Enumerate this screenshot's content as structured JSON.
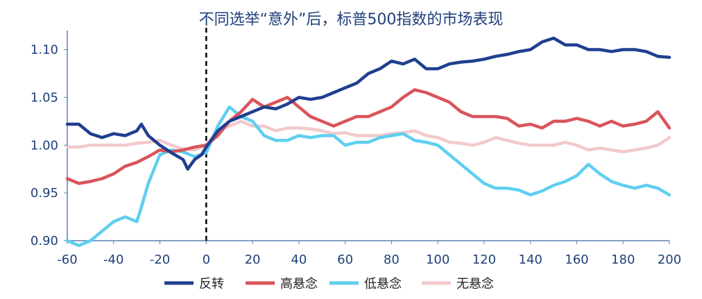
{
  "chart_data": {
    "type": "line",
    "title": "不同选举“意外”后，标普500指数的市场表现",
    "xlabel": "",
    "ylabel": "",
    "xlim": [
      -60,
      200
    ],
    "ylim": [
      0.9,
      1.12
    ],
    "x_ticks": [
      -60,
      -40,
      -20,
      0,
      20,
      40,
      60,
      80,
      100,
      120,
      140,
      160,
      180,
      200
    ],
    "x_tick_labels": [
      "-60",
      "-40",
      "-20",
      "0",
      "20",
      "40",
      "60",
      "80",
      "100",
      "120",
      "140",
      "160",
      "180",
      "200"
    ],
    "y_ticks": [
      0.9,
      0.95,
      1.0,
      1.05,
      1.1
    ],
    "y_tick_labels": [
      "0.90",
      "0.95",
      "1.00",
      "1.05",
      "1.10"
    ],
    "vline_x": 0,
    "grid": false,
    "legend_position": "bottom",
    "series": [
      {
        "name": "反转",
        "color": "#1f3f8f",
        "points": [
          [
            -60,
            1.022
          ],
          [
            -55,
            1.022
          ],
          [
            -50,
            1.012
          ],
          [
            -45,
            1.008
          ],
          [
            -40,
            1.012
          ],
          [
            -35,
            1.01
          ],
          [
            -30,
            1.015
          ],
          [
            -28,
            1.022
          ],
          [
            -25,
            1.01
          ],
          [
            -20,
            1.0
          ],
          [
            -15,
            0.992
          ],
          [
            -10,
            0.985
          ],
          [
            -8,
            0.975
          ],
          [
            -5,
            0.985
          ],
          [
            -2,
            0.99
          ],
          [
            0,
            0.998
          ],
          [
            5,
            1.015
          ],
          [
            10,
            1.025
          ],
          [
            15,
            1.03
          ],
          [
            20,
            1.035
          ],
          [
            25,
            1.04
          ],
          [
            30,
            1.038
          ],
          [
            35,
            1.043
          ],
          [
            40,
            1.05
          ],
          [
            45,
            1.048
          ],
          [
            50,
            1.05
          ],
          [
            55,
            1.055
          ],
          [
            60,
            1.06
          ],
          [
            65,
            1.065
          ],
          [
            70,
            1.075
          ],
          [
            75,
            1.08
          ],
          [
            80,
            1.088
          ],
          [
            85,
            1.085
          ],
          [
            90,
            1.09
          ],
          [
            95,
            1.08
          ],
          [
            100,
            1.08
          ],
          [
            105,
            1.085
          ],
          [
            110,
            1.087
          ],
          [
            115,
            1.088
          ],
          [
            120,
            1.09
          ],
          [
            125,
            1.093
          ],
          [
            130,
            1.095
          ],
          [
            135,
            1.098
          ],
          [
            140,
            1.1
          ],
          [
            145,
            1.108
          ],
          [
            150,
            1.112
          ],
          [
            155,
            1.105
          ],
          [
            160,
            1.105
          ],
          [
            165,
            1.1
          ],
          [
            170,
            1.1
          ],
          [
            175,
            1.098
          ],
          [
            180,
            1.1
          ],
          [
            185,
            1.1
          ],
          [
            190,
            1.098
          ],
          [
            195,
            1.093
          ],
          [
            200,
            1.092
          ]
        ]
      },
      {
        "name": "高悬念",
        "color": "#d9545a",
        "points": [
          [
            -60,
            0.965
          ],
          [
            -55,
            0.96
          ],
          [
            -50,
            0.962
          ],
          [
            -45,
            0.965
          ],
          [
            -40,
            0.97
          ],
          [
            -35,
            0.978
          ],
          [
            -30,
            0.982
          ],
          [
            -25,
            0.988
          ],
          [
            -20,
            0.995
          ],
          [
            -15,
            0.993
          ],
          [
            -10,
            0.995
          ],
          [
            -5,
            0.998
          ],
          [
            0,
            1.0
          ],
          [
            5,
            1.01
          ],
          [
            10,
            1.025
          ],
          [
            15,
            1.035
          ],
          [
            20,
            1.048
          ],
          [
            25,
            1.04
          ],
          [
            30,
            1.045
          ],
          [
            35,
            1.05
          ],
          [
            40,
            1.04
          ],
          [
            45,
            1.03
          ],
          [
            50,
            1.025
          ],
          [
            55,
            1.02
          ],
          [
            60,
            1.025
          ],
          [
            65,
            1.03
          ],
          [
            70,
            1.03
          ],
          [
            75,
            1.035
          ],
          [
            80,
            1.04
          ],
          [
            85,
            1.05
          ],
          [
            90,
            1.058
          ],
          [
            95,
            1.055
          ],
          [
            100,
            1.05
          ],
          [
            105,
            1.045
          ],
          [
            110,
            1.035
          ],
          [
            115,
            1.03
          ],
          [
            120,
            1.03
          ],
          [
            125,
            1.03
          ],
          [
            130,
            1.028
          ],
          [
            135,
            1.02
          ],
          [
            140,
            1.022
          ],
          [
            145,
            1.018
          ],
          [
            150,
            1.025
          ],
          [
            155,
            1.025
          ],
          [
            160,
            1.028
          ],
          [
            165,
            1.025
          ],
          [
            170,
            1.02
          ],
          [
            175,
            1.025
          ],
          [
            180,
            1.02
          ],
          [
            185,
            1.022
          ],
          [
            190,
            1.025
          ],
          [
            195,
            1.035
          ],
          [
            200,
            1.018
          ]
        ]
      },
      {
        "name": "低悬念",
        "color": "#5fcff0",
        "points": [
          [
            -60,
            0.9
          ],
          [
            -55,
            0.895
          ],
          [
            -50,
            0.9
          ],
          [
            -45,
            0.91
          ],
          [
            -40,
            0.92
          ],
          [
            -35,
            0.925
          ],
          [
            -30,
            0.92
          ],
          [
            -28,
            0.935
          ],
          [
            -25,
            0.96
          ],
          [
            -20,
            0.99
          ],
          [
            -15,
            0.995
          ],
          [
            -10,
            0.993
          ],
          [
            -5,
            0.988
          ],
          [
            0,
            0.992
          ],
          [
            5,
            1.02
          ],
          [
            10,
            1.04
          ],
          [
            15,
            1.03
          ],
          [
            20,
            1.025
          ],
          [
            25,
            1.01
          ],
          [
            30,
            1.005
          ],
          [
            35,
            1.005
          ],
          [
            40,
            1.01
          ],
          [
            45,
            1.008
          ],
          [
            50,
            1.01
          ],
          [
            55,
            1.01
          ],
          [
            60,
            1.0
          ],
          [
            65,
            1.003
          ],
          [
            70,
            1.003
          ],
          [
            75,
            1.008
          ],
          [
            80,
            1.01
          ],
          [
            85,
            1.012
          ],
          [
            90,
            1.005
          ],
          [
            95,
            1.003
          ],
          [
            100,
            1.0
          ],
          [
            105,
            0.99
          ],
          [
            110,
            0.98
          ],
          [
            115,
            0.97
          ],
          [
            120,
            0.96
          ],
          [
            125,
            0.955
          ],
          [
            130,
            0.955
          ],
          [
            135,
            0.953
          ],
          [
            140,
            0.948
          ],
          [
            145,
            0.952
          ],
          [
            150,
            0.958
          ],
          [
            155,
            0.962
          ],
          [
            160,
            0.968
          ],
          [
            165,
            0.98
          ],
          [
            170,
            0.97
          ],
          [
            175,
            0.962
          ],
          [
            180,
            0.958
          ],
          [
            185,
            0.955
          ],
          [
            190,
            0.958
          ],
          [
            195,
            0.955
          ],
          [
            200,
            0.948
          ]
        ]
      },
      {
        "name": "无悬念",
        "color": "#f2c9cc",
        "points": [
          [
            -60,
            0.998
          ],
          [
            -55,
            0.998
          ],
          [
            -50,
            1.0
          ],
          [
            -45,
            1.0
          ],
          [
            -40,
            1.0
          ],
          [
            -35,
            1.0
          ],
          [
            -30,
            1.002
          ],
          [
            -25,
            1.003
          ],
          [
            -20,
            1.005
          ],
          [
            -15,
            1.0
          ],
          [
            -10,
            0.996
          ],
          [
            -5,
            0.995
          ],
          [
            0,
            1.0
          ],
          [
            5,
            1.015
          ],
          [
            10,
            1.02
          ],
          [
            15,
            1.025
          ],
          [
            20,
            1.02
          ],
          [
            25,
            1.02
          ],
          [
            30,
            1.015
          ],
          [
            35,
            1.018
          ],
          [
            40,
            1.018
          ],
          [
            45,
            1.017
          ],
          [
            50,
            1.015
          ],
          [
            55,
            1.012
          ],
          [
            60,
            1.013
          ],
          [
            65,
            1.01
          ],
          [
            70,
            1.01
          ],
          [
            75,
            1.01
          ],
          [
            80,
            1.012
          ],
          [
            85,
            1.013
          ],
          [
            90,
            1.015
          ],
          [
            95,
            1.01
          ],
          [
            100,
            1.008
          ],
          [
            105,
            1.003
          ],
          [
            110,
            1.002
          ],
          [
            115,
            1.0
          ],
          [
            120,
            1.003
          ],
          [
            125,
            1.008
          ],
          [
            130,
            1.005
          ],
          [
            135,
            1.002
          ],
          [
            140,
            1.0
          ],
          [
            145,
            1.0
          ],
          [
            150,
            1.0
          ],
          [
            155,
            1.003
          ],
          [
            160,
            1.0
          ],
          [
            165,
            0.995
          ],
          [
            170,
            0.997
          ],
          [
            175,
            0.995
          ],
          [
            180,
            0.993
          ],
          [
            185,
            0.995
          ],
          [
            190,
            0.997
          ],
          [
            195,
            1.0
          ],
          [
            200,
            1.008
          ]
        ]
      }
    ]
  }
}
